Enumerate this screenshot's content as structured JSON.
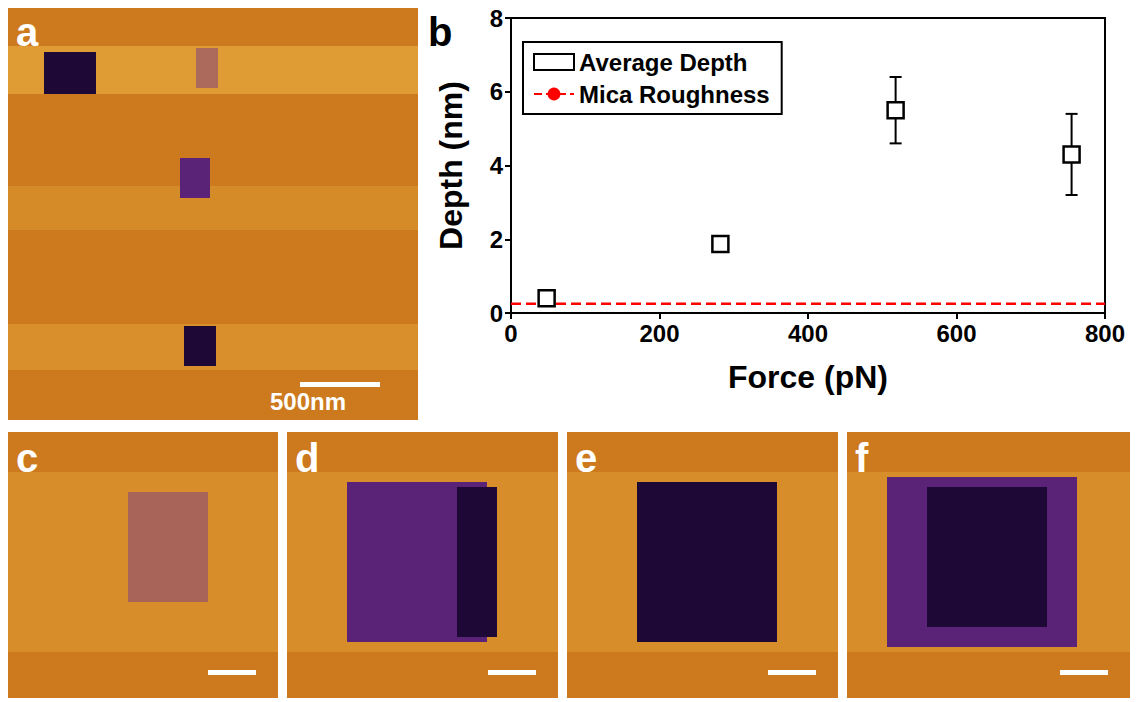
{
  "panel_labels": [
    "a",
    "b",
    "c",
    "d",
    "e",
    "f"
  ],
  "scale_bar": "500nm",
  "chart_data": {
    "type": "scatter",
    "xlabel": "Force (pN)",
    "ylabel": "Depth (nm)",
    "xlim": [
      0,
      800
    ],
    "xticks": [
      0,
      200,
      400,
      600,
      800
    ],
    "ylim": [
      0,
      8
    ],
    "yticks": [
      0,
      2,
      4,
      6,
      8
    ],
    "grid": false,
    "legend": "upper left",
    "series": [
      {
        "name": "Average Depth",
        "type": "scatter",
        "marker": "square",
        "color": "#000000",
        "x": [
          48,
          282,
          518,
          755
        ],
        "values": [
          0.4,
          1.87,
          5.5,
          4.3
        ],
        "errors": [
          0.2,
          0.1,
          0.9,
          1.1
        ]
      },
      {
        "name": "Mica Roughness",
        "type": "line",
        "line_style": "dashed",
        "color": "#ff0000",
        "x": [
          0,
          800
        ],
        "values": [
          0.25,
          0.25
        ]
      }
    ]
  }
}
